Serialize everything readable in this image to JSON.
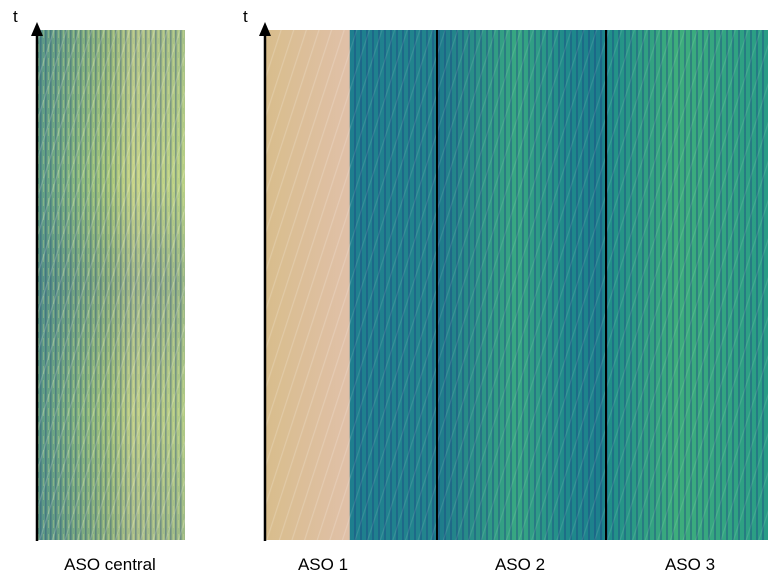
{
  "panels": [
    {
      "axis_label": "t",
      "labels": [
        "ASO central"
      ]
    },
    {
      "axis_label": "t",
      "labels": [
        "ASO 1",
        "ASO 2",
        "ASO 3"
      ]
    }
  ]
}
